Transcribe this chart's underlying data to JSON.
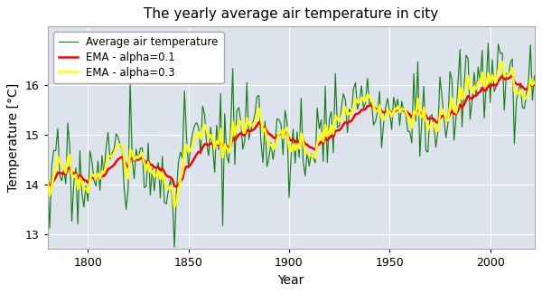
{
  "title": "The yearly average air temperature in city",
  "xlabel": "Year",
  "ylabel": "Temperature [°C]",
  "year_start": 1780,
  "year_end": 2022,
  "base_temp": 14.0,
  "trend": 0.0085,
  "noise_std": 0.48,
  "ema_alpha1": 0.1,
  "ema_alpha2": 0.3,
  "color_raw": "#1a7f1a",
  "color_ema1": "#ff0000",
  "color_ema2": "#ffff00",
  "lw_raw": 0.85,
  "lw_ema1": 1.8,
  "lw_ema2": 1.8,
  "legend_labels": [
    "Average air temperature",
    "EMA - alpha=0.1",
    "EMA - alpha=0.3"
  ],
  "ylim": [
    12.7,
    17.2
  ],
  "yticks": [
    13,
    14,
    15,
    16
  ],
  "xticks": [
    1800,
    1850,
    1900,
    1950,
    2000
  ],
  "facecolor": "#dde3ed",
  "fig_facecolor": "#ffffff",
  "border_color": "#aaaaaa",
  "seed": 17
}
